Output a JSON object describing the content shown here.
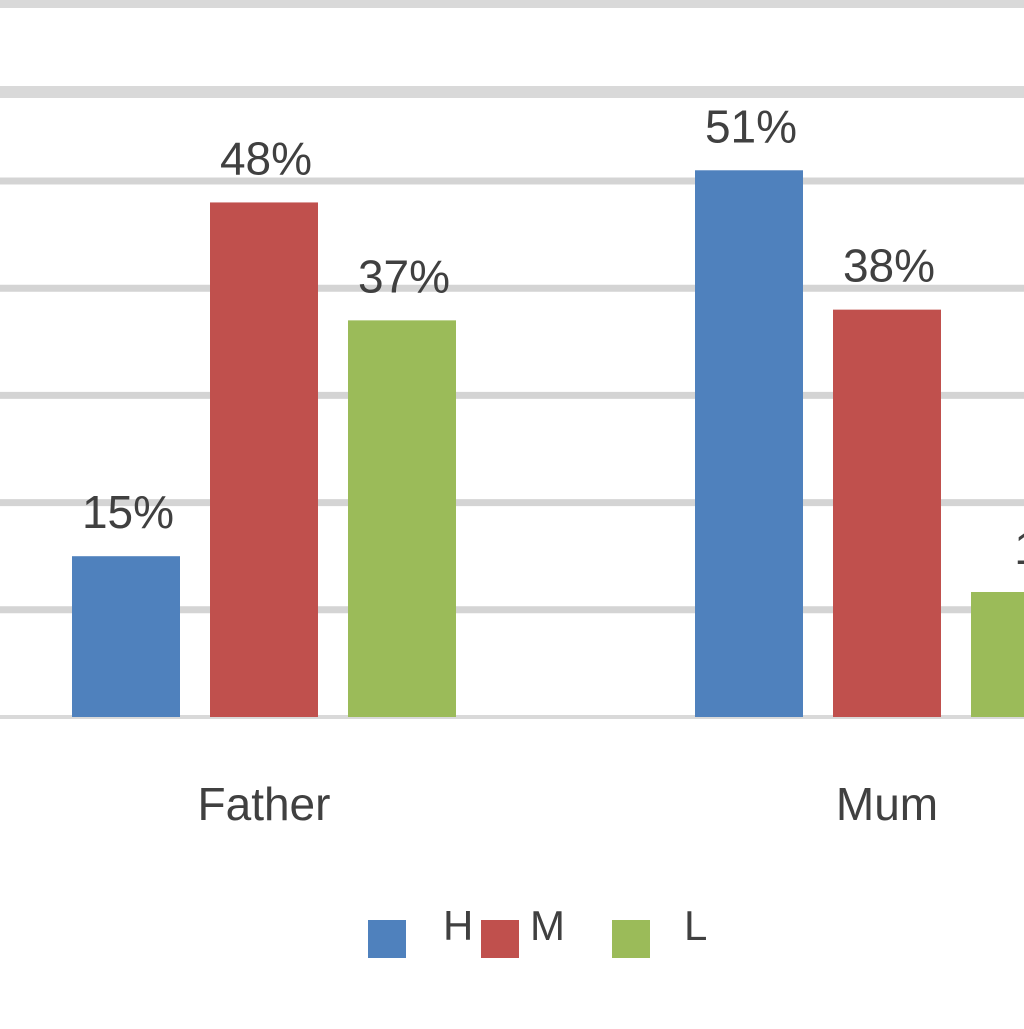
{
  "chart_data": {
    "type": "bar",
    "title": "",
    "xlabel": "",
    "ylabel": "",
    "categories": [
      "Father",
      "Mum"
    ],
    "series": [
      {
        "name": "H",
        "values": [
          15,
          51
        ],
        "color": "#4f81bd"
      },
      {
        "name": "M",
        "values": [
          48,
          38
        ],
        "color": "#c0504d"
      },
      {
        "name": "L",
        "values": [
          37,
          null
        ],
        "color": "#9bbb59"
      }
    ],
    "data_labels": [
      [
        "15%",
        "51%"
      ],
      [
        "48%",
        "38%"
      ],
      [
        "37%",
        "1"
      ]
    ],
    "ylim": [
      0,
      60
    ],
    "grid": true,
    "legend": "bottom"
  }
}
